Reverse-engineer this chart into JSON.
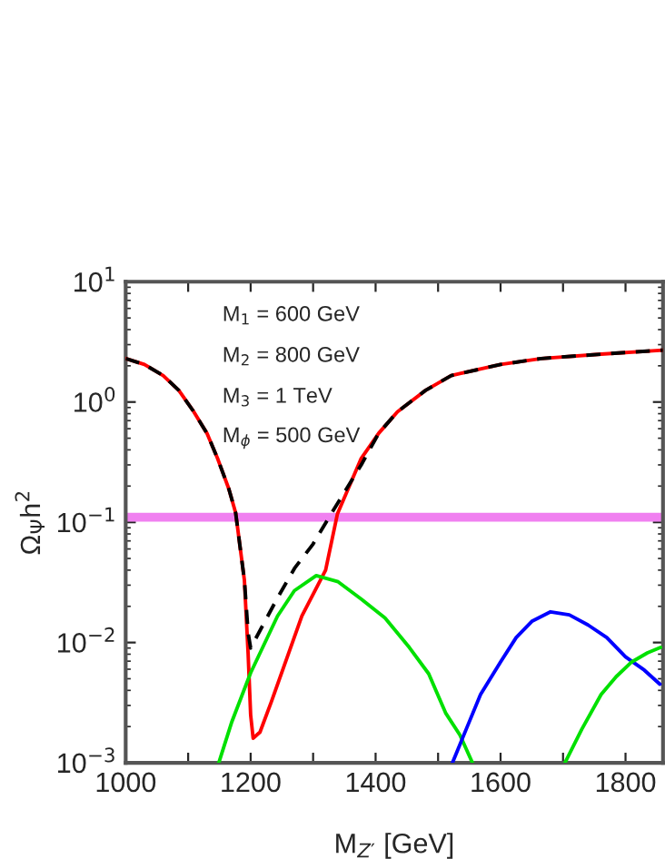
{
  "chart_data": {
    "type": "line",
    "xlabel": "M$_{Z′}$ [GeV]",
    "ylabel": "Ω$_{Ψ}$h$^{2}$",
    "log": "y",
    "xlim": [
      1000,
      1860
    ],
    "ylim": [
      0.001,
      10
    ],
    "xticks": [
      1000,
      {
        "value": 1100,
        "label": null
      },
      1200,
      {
        "value": 1300,
        "label": null
      },
      1400,
      {
        "value": 1500,
        "label": null
      },
      1600,
      {
        "value": 1700,
        "label": null
      },
      1800
    ],
    "yticks": [
      {
        "value": 0.001,
        "label": "10$^{−3}$"
      },
      {
        "value": 0.01,
        "label": "10$^{−2}$"
      },
      {
        "value": 0.1,
        "label": "10$^{−1}$"
      },
      {
        "value": 1,
        "label": "10$^{0}$"
      },
      {
        "value": 10,
        "label": "10$^{1}$"
      }
    ],
    "grid": false,
    "legend": false,
    "annotations": [
      "M$_{1}$ = 600 GeV",
      "M$_{2}$ = 800 GeV",
      "M$_{3}$ = 1 TeV",
      "M$_{ϕ}$ = 500 GeV"
    ],
    "ref_lines": [
      {
        "axis": "y",
        "value": 0.11,
        "color": "#f080f0"
      }
    ],
    "series": [
      {
        "color": "#ff0000",
        "line_style": "solid",
        "x": [
          1000,
          1030,
          1060,
          1085,
          1109,
          1130,
          1147,
          1165,
          1176,
          1190,
          1196,
          1200,
          1204,
          1215,
          1233,
          1282,
          1320,
          1339,
          1377,
          1405,
          1435,
          1480,
          1521,
          1600,
          1665,
          1761,
          1860
        ],
        "values": [
          2.3,
          2.05,
          1.66,
          1.25,
          0.83,
          0.55,
          0.34,
          0.19,
          0.12,
          0.033,
          0.008,
          0.0025,
          0.0016,
          0.0018,
          0.0032,
          0.0166,
          0.04,
          0.118,
          0.34,
          0.55,
          0.83,
          1.25,
          1.66,
          2.05,
          2.3,
          2.5,
          2.7
        ]
      },
      {
        "color": "#000000",
        "line_style": "dashed",
        "x": [
          1000,
          1030,
          1060,
          1085,
          1109,
          1130,
          1147,
          1165,
          1176,
          1190,
          1196,
          1200,
          1242,
          1271,
          1300,
          1329,
          1377,
          1405,
          1435,
          1480,
          1521,
          1600,
          1665,
          1761,
          1860
        ],
        "values": [
          2.3,
          2.05,
          1.66,
          1.25,
          0.83,
          0.55,
          0.34,
          0.19,
          0.12,
          0.033,
          0.012,
          0.009,
          0.023,
          0.042,
          0.066,
          0.118,
          0.3,
          0.55,
          0.83,
          1.25,
          1.66,
          2.05,
          2.3,
          2.5,
          2.7
        ]
      },
      {
        "color": "#00e000",
        "line_style": "solid",
        "x": [
          1149,
          1170,
          1200,
          1243,
          1270,
          1305,
          1340,
          1377,
          1415,
          1454,
          1485,
          1512,
          1535,
          1555
        ],
        "values": [
          0.001,
          0.0022,
          0.0056,
          0.0166,
          0.027,
          0.036,
          0.032,
          0.023,
          0.016,
          0.0091,
          0.0055,
          0.0026,
          0.0017,
          0.001
        ]
      },
      {
        "color": "#0000ff",
        "line_style": "solid",
        "x": [
          1523,
          1545,
          1568,
          1600,
          1625,
          1650,
          1680,
          1710,
          1740,
          1770,
          1800,
          1830,
          1855
        ],
        "values": [
          0.001,
          0.0019,
          0.0037,
          0.0069,
          0.011,
          0.015,
          0.018,
          0.017,
          0.014,
          0.011,
          0.0076,
          0.0059,
          0.0045
        ]
      },
      {
        "color": "#00e000",
        "line_style": "solid",
        "x": [
          1703,
          1730,
          1761,
          1785,
          1810,
          1835,
          1856
        ],
        "values": [
          0.001,
          0.0019,
          0.0037,
          0.0052,
          0.0069,
          0.0082,
          0.0091
        ]
      }
    ]
  }
}
